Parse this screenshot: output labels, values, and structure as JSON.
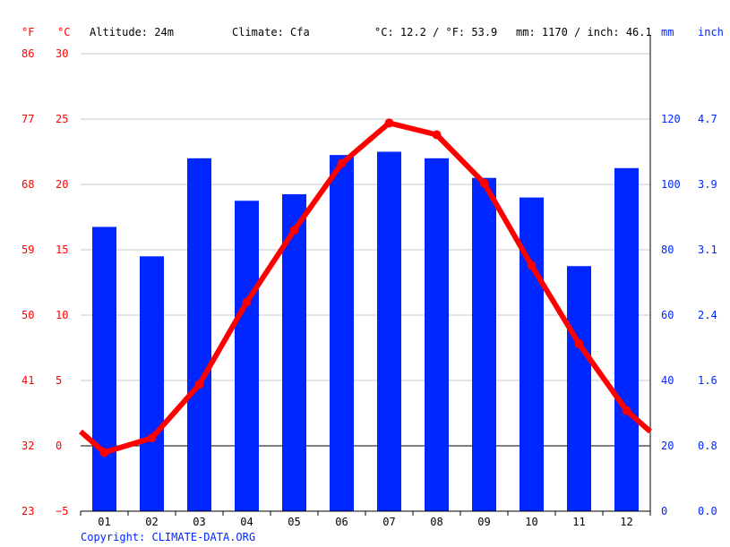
{
  "chart_data": {
    "type": "bar+line",
    "header": {
      "unit_f": "°F",
      "unit_c": "°C",
      "altitude": "Altitude: 24m",
      "climate": "Climate: Cfa",
      "temp_summary": "°C: 12.2 / °F: 53.9",
      "precip_summary": "mm: 1170 / inch: 46.1",
      "unit_mm": "mm",
      "unit_inch": "inch"
    },
    "categories": [
      "01",
      "02",
      "03",
      "04",
      "05",
      "06",
      "07",
      "08",
      "09",
      "10",
      "11",
      "12"
    ],
    "precipitation_mm": [
      87,
      78,
      108,
      95,
      97,
      109,
      110,
      108,
      102,
      96,
      75,
      105
    ],
    "temperature_c": [
      -0.5,
      0.6,
      4.7,
      11.0,
      16.5,
      21.6,
      24.7,
      23.8,
      20.1,
      13.8,
      7.8,
      2.7
    ],
    "left_axis_c": {
      "range": [
        -5,
        30
      ],
      "ticks": [
        "30",
        "25",
        "20",
        "15",
        "10",
        "5",
        "0",
        "−5"
      ]
    },
    "left_axis_f": {
      "ticks": [
        "86",
        "77",
        "68",
        "59",
        "50",
        "41",
        "32",
        "23"
      ]
    },
    "right_axis_mm": {
      "range": [
        0,
        140
      ],
      "ticks": [
        "120",
        "100",
        "80",
        "60",
        "40",
        "20",
        "0"
      ]
    },
    "right_axis_inch": {
      "ticks": [
        "4.7",
        "3.9",
        "3.1",
        "2.4",
        "1.6",
        "0.8",
        "0.0"
      ]
    },
    "grid": true,
    "colors": {
      "bars": "#0026ff",
      "line": "#ff0000",
      "grid": "#c8c8c8",
      "temp_axis": "#ff0000",
      "precip_axis": "#0026ff"
    },
    "copyright": "Copyright: CLIMATE-DATA.ORG"
  }
}
